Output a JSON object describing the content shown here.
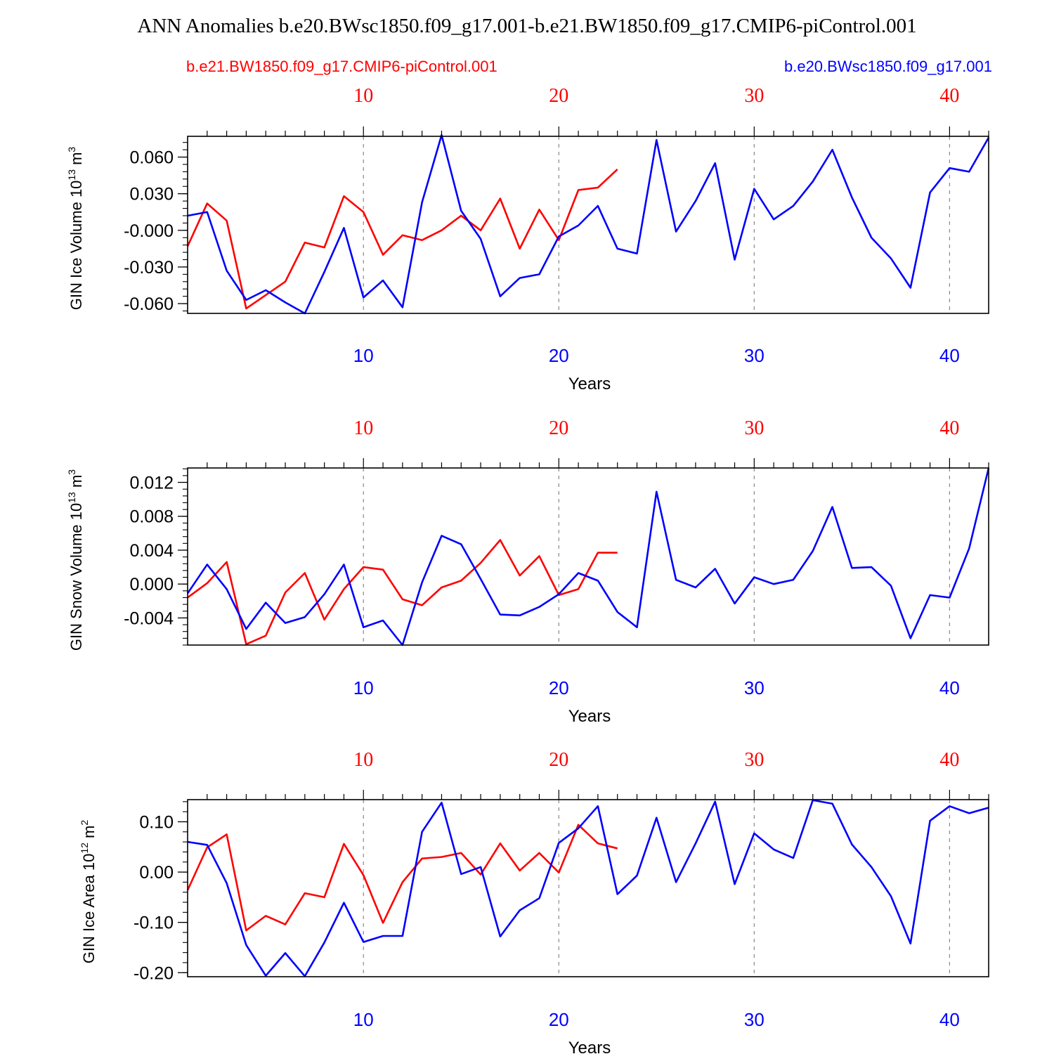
{
  "title": "ANN Anomalies b.e20.BWsc1850.f09_g17.001-b.e21.BW1850.f09_g17.CMIP6-piControl.001",
  "legend": {
    "red_label": "b.e21.BW1850.f09_g17.CMIP6-piControl.001",
    "blue_label": "b.e20.BWsc1850.f09_g17.001"
  },
  "colors": {
    "red": "#ff0000",
    "blue": "#0000ff",
    "axis": "#000000",
    "grid": "#888888"
  },
  "chart_data": [
    {
      "type": "line",
      "name": "ice-volume",
      "ylabel_main": "GIN Ice Volume 10",
      "ylabel_exp": "13",
      "ylabel_unit": " m",
      "ylabel_unit_exp": "3",
      "xlabel": "Years",
      "xlim": [
        1,
        42
      ],
      "ylim": [
        -0.068,
        0.077
      ],
      "x_ticks": [
        10,
        20,
        30,
        40
      ],
      "y_ticks": [
        -0.06,
        -0.03,
        0.0,
        0.03,
        0.06
      ],
      "y_tick_labels": [
        "-0.060",
        "-0.030",
        "-0.000",
        "0.030",
        "0.060"
      ],
      "y_minor_step": 0.006,
      "series": [
        {
          "name": "b.e21.BW1850.f09_g17.CMIP6-piControl.001",
          "color": "red",
          "x": [
            1,
            2,
            3,
            4,
            5,
            6,
            7,
            8,
            9,
            10,
            11,
            12,
            13,
            14,
            15,
            16,
            17,
            18,
            19,
            20,
            21,
            22,
            23
          ],
          "values": [
            -0.013,
            0.022,
            0.008,
            -0.064,
            -0.053,
            -0.042,
            -0.01,
            -0.014,
            0.028,
            0.015,
            -0.02,
            -0.004,
            -0.008,
            0.0,
            0.012,
            0.0,
            0.026,
            -0.015,
            0.017,
            -0.008,
            0.033,
            0.035,
            0.05
          ]
        },
        {
          "name": "b.e20.BWsc1850.f09_g17.001",
          "color": "blue",
          "x": [
            1,
            2,
            3,
            4,
            5,
            6,
            7,
            8,
            9,
            10,
            11,
            12,
            13,
            14,
            15,
            16,
            17,
            18,
            19,
            20,
            21,
            22,
            23,
            24,
            25,
            26,
            27,
            28,
            29,
            30,
            31,
            32,
            33,
            34,
            35,
            36,
            37,
            38,
            39,
            40,
            41,
            42
          ],
          "values": [
            0.012,
            0.015,
            -0.033,
            -0.057,
            -0.049,
            -0.059,
            -0.068,
            -0.034,
            0.002,
            -0.055,
            -0.041,
            -0.063,
            0.023,
            0.078,
            0.016,
            -0.007,
            -0.054,
            -0.039,
            -0.036,
            -0.005,
            0.004,
            0.02,
            -0.015,
            -0.019,
            0.074,
            -0.001,
            0.024,
            0.055,
            -0.024,
            0.034,
            0.009,
            0.02,
            0.04,
            0.066,
            0.027,
            -0.006,
            -0.023,
            -0.047,
            0.031,
            0.051,
            0.048,
            0.076
          ]
        }
      ]
    },
    {
      "type": "line",
      "name": "snow-volume",
      "ylabel_main": "GIN Snow Volume 10",
      "ylabel_exp": "13",
      "ylabel_unit": " m",
      "ylabel_unit_exp": "3",
      "xlabel": "Years",
      "xlim": [
        1,
        42
      ],
      "ylim": [
        -0.0072,
        0.0137
      ],
      "x_ticks": [
        10,
        20,
        30,
        40
      ],
      "y_ticks": [
        -0.004,
        0.0,
        0.004,
        0.008,
        0.012
      ],
      "y_tick_labels": [
        "-0.004",
        "0.000",
        "0.004",
        "0.008",
        "0.012"
      ],
      "y_minor_step": 0.0008,
      "series": [
        {
          "name": "b.e21.BW1850.f09_g17.CMIP6-piControl.001",
          "color": "red",
          "x": [
            1,
            2,
            3,
            4,
            5,
            6,
            7,
            8,
            9,
            10,
            11,
            12,
            13,
            14,
            15,
            16,
            17,
            18,
            19,
            20,
            21,
            22,
            23
          ],
          "values": [
            -0.0016,
            0.0001,
            0.0026,
            -0.0071,
            -0.0061,
            -0.001,
            0.0013,
            -0.0042,
            -0.0006,
            0.002,
            0.0017,
            -0.0018,
            -0.0025,
            -0.0004,
            0.0004,
            0.0025,
            0.0052,
            0.001,
            0.0033,
            -0.0013,
            -0.0006,
            0.0037,
            0.0037
          ]
        },
        {
          "name": "b.e20.BWsc1850.f09_g17.001",
          "color": "blue",
          "x": [
            1,
            2,
            3,
            4,
            5,
            6,
            7,
            8,
            9,
            10,
            11,
            12,
            13,
            14,
            15,
            16,
            17,
            18,
            19,
            20,
            21,
            22,
            23,
            24,
            25,
            26,
            27,
            28,
            29,
            30,
            31,
            32,
            33,
            34,
            35,
            36,
            37,
            38,
            39,
            40,
            41,
            42
          ],
          "values": [
            -0.0011,
            0.0023,
            -0.0006,
            -0.0053,
            -0.0022,
            -0.0046,
            -0.0039,
            -0.0012,
            0.0023,
            -0.0051,
            -0.0043,
            -0.0072,
            0.0002,
            0.0057,
            0.0047,
            0.0006,
            -0.0036,
            -0.0037,
            -0.0027,
            -0.0012,
            0.0013,
            0.0004,
            -0.0033,
            -0.0051,
            0.0109,
            0.0005,
            -0.0004,
            0.0018,
            -0.0023,
            0.0008,
            0.0,
            0.0005,
            0.0039,
            0.0091,
            0.0019,
            0.002,
            -0.0002,
            -0.0064,
            -0.0013,
            -0.0016,
            0.0042,
            0.0137
          ]
        }
      ]
    },
    {
      "type": "line",
      "name": "ice-area",
      "ylabel_main": "GIN Ice Area 10",
      "ylabel_exp": "12",
      "ylabel_unit": " m",
      "ylabel_unit_exp": "2",
      "xlabel": "Years",
      "xlim": [
        1,
        42
      ],
      "ylim": [
        -0.208,
        0.144
      ],
      "x_ticks": [
        10,
        20,
        30,
        40
      ],
      "y_ticks": [
        -0.2,
        -0.1,
        0.0,
        0.1
      ],
      "y_tick_labels": [
        "-0.20",
        "-0.10",
        "0.00",
        "0.10"
      ],
      "y_minor_step": 0.02,
      "series": [
        {
          "name": "b.e21.BW1850.f09_g17.CMIP6-piControl.001",
          "color": "red",
          "x": [
            1,
            2,
            3,
            4,
            5,
            6,
            7,
            8,
            9,
            10,
            11,
            12,
            13,
            14,
            15,
            16,
            17,
            18,
            19,
            20,
            21,
            22,
            23
          ],
          "values": [
            -0.036,
            0.049,
            0.075,
            -0.116,
            -0.087,
            -0.104,
            -0.042,
            -0.05,
            0.056,
            -0.006,
            -0.101,
            -0.02,
            0.027,
            0.03,
            0.038,
            -0.005,
            0.057,
            0.003,
            0.038,
            -0.001,
            0.094,
            0.057,
            0.047
          ]
        },
        {
          "name": "b.e20.BWsc1850.f09_g17.001",
          "color": "blue",
          "x": [
            1,
            2,
            3,
            4,
            5,
            6,
            7,
            8,
            9,
            10,
            11,
            12,
            13,
            14,
            15,
            16,
            17,
            18,
            19,
            20,
            21,
            22,
            23,
            24,
            25,
            26,
            27,
            28,
            29,
            30,
            31,
            32,
            33,
            34,
            35,
            36,
            37,
            38,
            39,
            40,
            41,
            42
          ],
          "values": [
            0.06,
            0.054,
            -0.022,
            -0.145,
            -0.206,
            -0.161,
            -0.207,
            -0.14,
            -0.061,
            -0.139,
            -0.127,
            -0.127,
            0.08,
            0.138,
            -0.004,
            0.01,
            -0.128,
            -0.076,
            -0.052,
            0.058,
            0.087,
            0.131,
            -0.044,
            -0.007,
            0.108,
            -0.02,
            0.057,
            0.14,
            -0.024,
            0.077,
            0.045,
            0.028,
            0.143,
            0.136,
            0.055,
            0.01,
            -0.048,
            -0.142,
            0.102,
            0.131,
            0.117,
            0.128
          ]
        }
      ]
    }
  ]
}
